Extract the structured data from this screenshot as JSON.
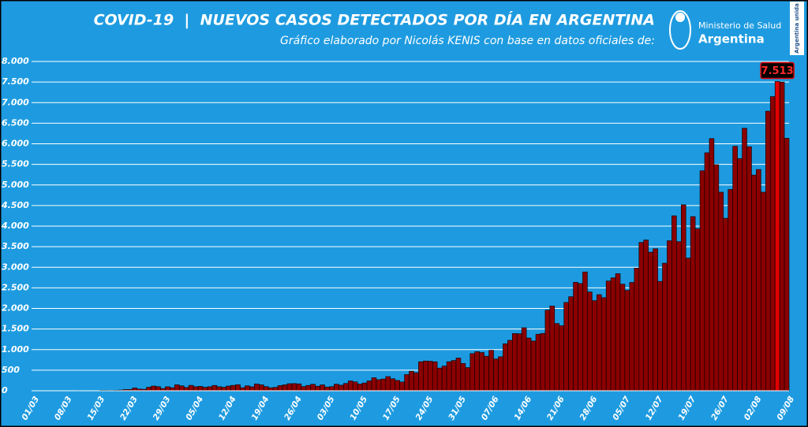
{
  "chart_data": {
    "type": "bar",
    "title": "COVID-19  |  NUEVOS CASOS DETECTADOS POR DÍA EN ARGENTINA",
    "subtitle": "Gráfico elaborado por Nicolás KENIS con base en datos oficiales de:",
    "source": [
      "Ministerio de Salud",
      "Argentina"
    ],
    "badge": "Argentina unida",
    "color": "#8b0000",
    "highlight_color": "#e00000",
    "background": "#1e9be0",
    "grid": true,
    "ylim": [
      0,
      8000
    ],
    "yticks": [
      0,
      500,
      {
        "value": 1000,
        "label": "1.000"
      },
      {
        "value": 1500,
        "label": "1.500"
      },
      {
        "value": 2000,
        "label": "2.000"
      },
      {
        "value": 2500,
        "label": "2.500"
      },
      {
        "value": 3000,
        "label": "3.000"
      },
      {
        "value": 3500,
        "label": "3.500"
      },
      {
        "value": 4000,
        "label": "4.000"
      },
      {
        "value": 4500,
        "label": "4.500"
      },
      {
        "value": 5000,
        "label": "5.000"
      },
      {
        "value": 5500,
        "label": "5.500"
      },
      {
        "value": 6000,
        "label": "6.000"
      },
      {
        "value": 6500,
        "label": "6.500"
      },
      {
        "value": 7000,
        "label": "7.000"
      },
      {
        "value": 7500,
        "label": "7.500"
      },
      {
        "value": 8000,
        "label": "8.000"
      }
    ],
    "categories": [
      "01/03",
      null,
      null,
      null,
      null,
      null,
      null,
      "08/03",
      null,
      null,
      null,
      null,
      null,
      null,
      "15/03",
      null,
      null,
      null,
      null,
      null,
      null,
      "22/03",
      null,
      null,
      null,
      null,
      null,
      null,
      "29/03",
      null,
      null,
      null,
      null,
      null,
      null,
      "05/04",
      null,
      null,
      null,
      null,
      null,
      null,
      "12/04",
      null,
      null,
      null,
      null,
      null,
      null,
      "19/04",
      null,
      null,
      null,
      null,
      null,
      null,
      "26/04",
      null,
      null,
      null,
      null,
      null,
      null,
      "03/05",
      null,
      null,
      null,
      null,
      null,
      null,
      "10/05",
      null,
      null,
      null,
      null,
      null,
      null,
      "17/05",
      null,
      null,
      null,
      null,
      null,
      null,
      "24/05",
      null,
      null,
      null,
      null,
      null,
      null,
      "31/05",
      null,
      null,
      null,
      null,
      null,
      null,
      "07/06",
      null,
      null,
      null,
      null,
      null,
      null,
      "14/06",
      null,
      null,
      null,
      null,
      null,
      null,
      "21/06",
      null,
      null,
      null,
      null,
      null,
      null,
      "28/06",
      null,
      null,
      null,
      null,
      null,
      null,
      "05/07",
      null,
      null,
      null,
      null,
      null,
      null,
      "12/07",
      null,
      null,
      null,
      null,
      null,
      null,
      "19/07",
      null,
      null,
      null,
      null,
      null,
      null,
      "26/07",
      null,
      null,
      null,
      null,
      null,
      null,
      "02/08",
      null,
      null,
      null,
      null,
      null,
      null,
      "09/08"
    ],
    "values": [
      0,
      0,
      1,
      0,
      0,
      1,
      0,
      0,
      2,
      5,
      2,
      2,
      0,
      3,
      11,
      11,
      9,
      13,
      18,
      30,
      31,
      67,
      41,
      36,
      86,
      115,
      101,
      55,
      97,
      75,
      146,
      120,
      80,
      132,
      98,
      107,
      84,
      98,
      130,
      99,
      86,
      115,
      132,
      148,
      75,
      120,
      96,
      165,
      144,
      102,
      73,
      84,
      126,
      144,
      172,
      175,
      168,
      103,
      131,
      158,
      111,
      143,
      92,
      101,
      161,
      135,
      178,
      239,
      216,
      163,
      190,
      240,
      316,
      269,
      285,
      345,
      292,
      251,
      213,
      393,
      474,
      438,
      705,
      723,
      718,
      704,
      552,
      600,
      706,
      735,
      795,
      663,
      564,
      904,
      949,
      929,
      840,
      983,
      773,
      826,
      1141,
      1226,
      1391,
      1386,
      1531,
      1282,
      1208,
      1374,
      1393,
      1958,
      2060,
      1634,
      1581,
      2146,
      2285,
      2635,
      2606,
      2886,
      2401,
      2189,
      2335,
      2262,
      2667,
      2744,
      2845,
      2590,
      2439,
      2632,
      2979,
      3604,
      3663,
      3367,
      3449,
      2657,
      3099,
      3645,
      4250,
      3623,
      4518,
      3223,
      4231,
      3937,
      5344,
      5782,
      6127,
      5493,
      4824,
      4190,
      4890,
      5939,
      5641,
      6377,
      5929,
      5241,
      5376,
      4824,
      6792,
      7147,
      7513,
      7498,
      6134,
      null
    ],
    "value_labels": [
      null,
      null,
      null,
      null,
      null,
      null,
      null,
      null,
      null,
      null,
      null,
      null,
      null,
      null,
      null,
      null,
      null,
      null,
      null,
      null,
      null,
      null,
      null,
      null,
      null,
      null,
      null,
      null,
      null,
      null,
      null,
      null,
      null,
      null,
      null,
      null,
      null,
      null,
      null,
      null,
      null,
      null,
      null,
      null,
      null,
      null,
      null,
      null,
      null,
      null,
      null,
      null,
      null,
      null,
      null,
      null,
      null,
      null,
      null,
      null,
      null,
      null,
      null,
      null,
      null,
      null,
      null,
      null,
      null,
      null,
      null,
      null,
      null,
      null,
      null,
      null,
      null,
      null,
      null,
      null,
      null,
      null,
      null,
      null,
      null,
      null,
      null,
      null,
      null,
      null,
      null,
      null,
      null,
      null,
      null,
      null,
      null,
      null,
      null,
      null,
      null,
      null,
      null,
      null,
      null,
      null,
      null,
      null,
      null,
      null,
      null,
      null,
      null,
      null,
      null,
      null,
      null,
      null,
      null,
      null,
      null,
      null,
      null,
      null,
      null,
      null,
      null,
      null,
      null,
      null,
      null,
      null,
      null,
      null,
      null,
      null,
      null,
      null,
      null,
      null,
      null,
      null,
      null,
      null,
      null,
      null,
      null,
      null,
      null,
      null,
      null,
      null,
      null,
      null,
      null,
      null,
      null,
      null,
      "7.513",
      null,
      null,
      null
    ]
  }
}
